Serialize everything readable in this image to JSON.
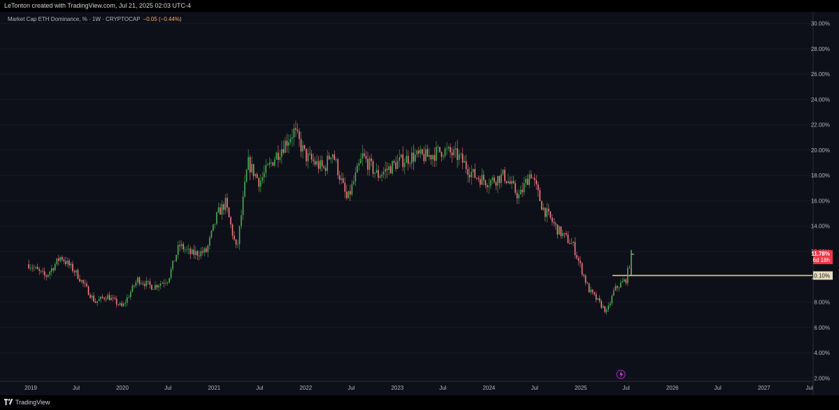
{
  "header": {
    "caption": "LeTonton created with TradingView.com, Jul 21, 2025 02:03 UTC-4"
  },
  "legend": {
    "title": "Market Cap ETH Dominance, % · 1W · CRYPTOCAP",
    "change": "−0.05 (−0.44%)"
  },
  "footer": {
    "brand": "TradingView"
  },
  "colors": {
    "up": "#4caf50",
    "down": "#f77c80",
    "background": "#0e1019",
    "axis_text": "#b2b5be",
    "last_price_bg": "#f23645",
    "ref_line": "#d8c9a3"
  },
  "chart_data": {
    "type": "candlestick",
    "title": "Market Cap ETH Dominance",
    "symbol": "CRYPTOCAP",
    "interval": "1W",
    "unit": "%",
    "x_ticks": [
      "2019",
      "Jul",
      "2020",
      "Jul",
      "2021",
      "Jul",
      "2022",
      "Jul",
      "2023",
      "Jul",
      "2024",
      "Jul",
      "2025",
      "Jul",
      "2026",
      "Jul",
      "2027",
      "Jul"
    ],
    "y_ticks": [
      "30.00%",
      "28.00%",
      "26.00%",
      "24.00%",
      "22.00%",
      "20.00%",
      "18.00%",
      "16.00%",
      "14.00%",
      "12.00%",
      "10.00%",
      "8.00%",
      "6.00%",
      "4.00%",
      "2.00%"
    ],
    "ylim": [
      2,
      30
    ],
    "last_price": {
      "value_label": "11.78%",
      "countdown": "6d 18h"
    },
    "reference_line": {
      "value": 10.1,
      "label": "10.10%"
    },
    "series": [
      {
        "approx_weekly_path": [
          {
            "date": "2018-12-24",
            "value": 11.0
          },
          {
            "date": "2019-03-01",
            "value": 10.0
          },
          {
            "date": "2019-05-01",
            "value": 11.6
          },
          {
            "date": "2019-07-01",
            "value": 10.3
          },
          {
            "date": "2019-09-15",
            "value": 8.0
          },
          {
            "date": "2019-11-01",
            "value": 8.5
          },
          {
            "date": "2020-01-01",
            "value": 7.6
          },
          {
            "date": "2020-03-01",
            "value": 9.8
          },
          {
            "date": "2020-05-01",
            "value": 9.2
          },
          {
            "date": "2020-07-01",
            "value": 9.8
          },
          {
            "date": "2020-08-15",
            "value": 12.5
          },
          {
            "date": "2020-10-01",
            "value": 11.8
          },
          {
            "date": "2020-12-01",
            "value": 12.0
          },
          {
            "date": "2021-01-15",
            "value": 15.0
          },
          {
            "date": "2021-02-15",
            "value": 15.8
          },
          {
            "date": "2021-04-01",
            "value": 12.0
          },
          {
            "date": "2021-05-15",
            "value": 19.0
          },
          {
            "date": "2021-07-01",
            "value": 17.5
          },
          {
            "date": "2021-09-01",
            "value": 19.5
          },
          {
            "date": "2021-11-15",
            "value": 21.5
          },
          {
            "date": "2022-01-01",
            "value": 19.5
          },
          {
            "date": "2022-03-15",
            "value": 18.5
          },
          {
            "date": "2022-04-15",
            "value": 20.0
          },
          {
            "date": "2022-06-15",
            "value": 16.0
          },
          {
            "date": "2022-08-15",
            "value": 19.5
          },
          {
            "date": "2022-10-15",
            "value": 18.0
          },
          {
            "date": "2023-01-01",
            "value": 19.0
          },
          {
            "date": "2023-03-01",
            "value": 19.5
          },
          {
            "date": "2023-05-01",
            "value": 19.5
          },
          {
            "date": "2023-07-01",
            "value": 20.0
          },
          {
            "date": "2023-09-01",
            "value": 19.5
          },
          {
            "date": "2023-11-01",
            "value": 18.0
          },
          {
            "date": "2024-01-01",
            "value": 17.5
          },
          {
            "date": "2024-03-01",
            "value": 18.0
          },
          {
            "date": "2024-05-01",
            "value": 16.3
          },
          {
            "date": "2024-06-15",
            "value": 18.3
          },
          {
            "date": "2024-08-01",
            "value": 15.5
          },
          {
            "date": "2024-10-01",
            "value": 13.7
          },
          {
            "date": "2024-12-01",
            "value": 12.5
          },
          {
            "date": "2025-02-01",
            "value": 9.0
          },
          {
            "date": "2025-04-15",
            "value": 7.2
          },
          {
            "date": "2025-05-15",
            "value": 9.0
          },
          {
            "date": "2025-07-01",
            "value": 9.8
          },
          {
            "date": "2025-07-21",
            "value": 11.78
          }
        ]
      }
    ]
  }
}
